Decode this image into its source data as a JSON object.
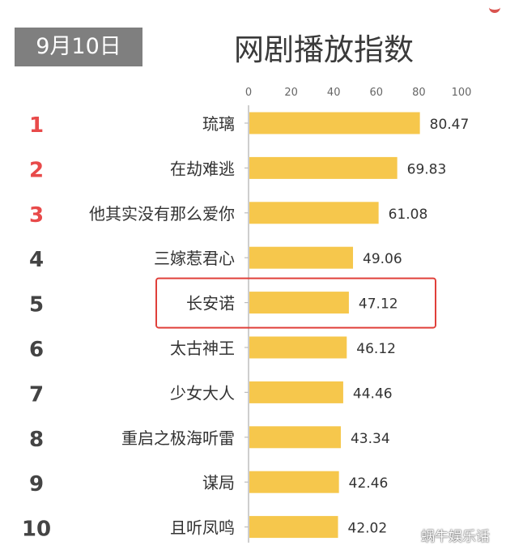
{
  "header": {
    "date": "9月10日",
    "title": "网剧播放指数"
  },
  "watermark": "蜗牛娱乐话",
  "colors": {
    "bar": "#f6c74c",
    "rank_top3": "#e84a4a",
    "rank_other": "#444444",
    "highlight_box": "#e0403a",
    "axis": "#bdbdbd",
    "badge_bg": "#7f7f7f"
  },
  "chart_data": {
    "type": "bar",
    "orientation": "horizontal",
    "title": "网剧播放指数",
    "xlim": [
      0,
      100
    ],
    "x_ticks": [
      "0",
      "20",
      "40",
      "60",
      "80",
      "100"
    ],
    "ranks": [
      "1",
      "2",
      "3",
      "4",
      "5",
      "6",
      "7",
      "8",
      "9",
      "10"
    ],
    "categories": [
      "琉璃",
      "在劫难逃",
      "他其实没有那么爱你",
      "三嫁惹君心",
      "长安诺",
      "太古神王",
      "少女大人",
      "重启之极海听雷",
      "谋局",
      "且听凤鸣"
    ],
    "values": [
      80.47,
      69.83,
      61.08,
      49.06,
      47.12,
      46.12,
      44.46,
      43.34,
      42.46,
      42.02
    ],
    "value_labels": [
      "80.47",
      "69.83",
      "61.08",
      "49.06",
      "47.12",
      "46.12",
      "44.46",
      "43.34",
      "42.46",
      "42.02"
    ],
    "highlighted_category": "长安诺",
    "grid": false,
    "legend": "none"
  }
}
